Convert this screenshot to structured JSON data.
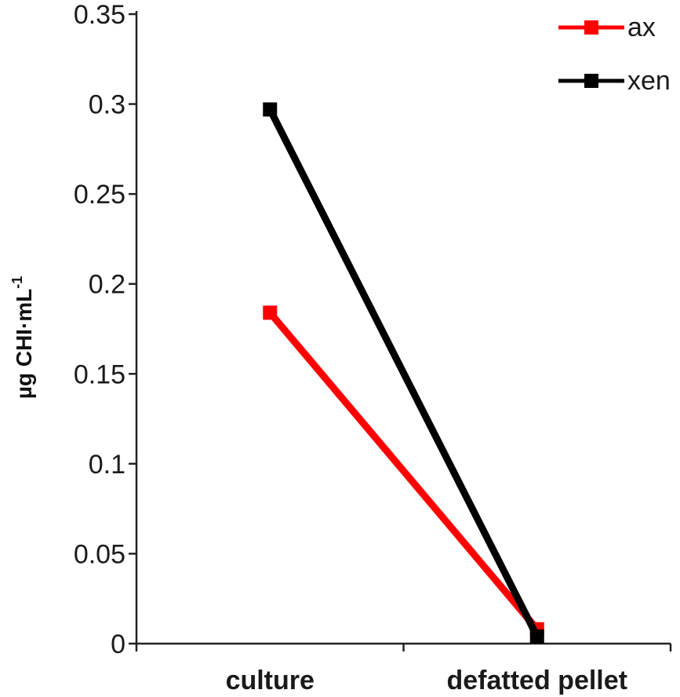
{
  "chart_data": {
    "type": "line",
    "categories": [
      "culture",
      "defatted pellet"
    ],
    "series": [
      {
        "name": "ax",
        "values": [
          0.184,
          0.008
        ],
        "color": "#ff0000"
      },
      {
        "name": "xen",
        "values": [
          0.297,
          0.004
        ],
        "color": "#000000"
      }
    ],
    "ylabel": {
      "main": "µg CHI·mL",
      "superscript": "-1"
    },
    "ylim": [
      0,
      0.35
    ],
    "yticks": [
      "0",
      "0.05",
      "0.1",
      "0.15",
      "0.2",
      "0.25",
      "0.3",
      "0.35"
    ],
    "grid": false,
    "legend_position": "top-right",
    "marker": "square"
  }
}
